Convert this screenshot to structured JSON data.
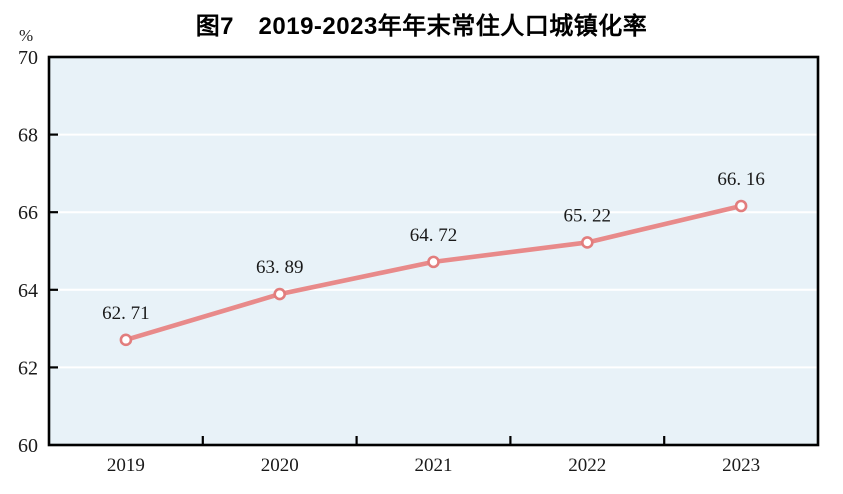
{
  "chart_data": {
    "type": "line",
    "title": "图7　2019-2023年年末常住人口城镇化率",
    "unit": "%",
    "categories": [
      "2019",
      "2020",
      "2021",
      "2022",
      "2023"
    ],
    "series": [
      {
        "name": "年末常住人口城镇化率",
        "values": [
          62.71,
          63.89,
          64.72,
          65.22,
          66.16
        ],
        "point_labels": [
          "62. 71",
          "63. 89",
          "64. 72",
          "65. 22",
          "66. 16"
        ]
      }
    ],
    "ylim": [
      60,
      70
    ],
    "yticks": [
      60,
      62,
      64,
      66,
      68,
      70
    ],
    "grid": "horizontal",
    "legend": "none",
    "colors": {
      "line": "#e88a8a",
      "marker_fill": "#ffffff",
      "marker_stroke": "#e27d7d",
      "plot_background": "#e8f2f8",
      "gridline": "#ffffff",
      "axis": "#000000",
      "text": "#1a1a1a"
    }
  }
}
